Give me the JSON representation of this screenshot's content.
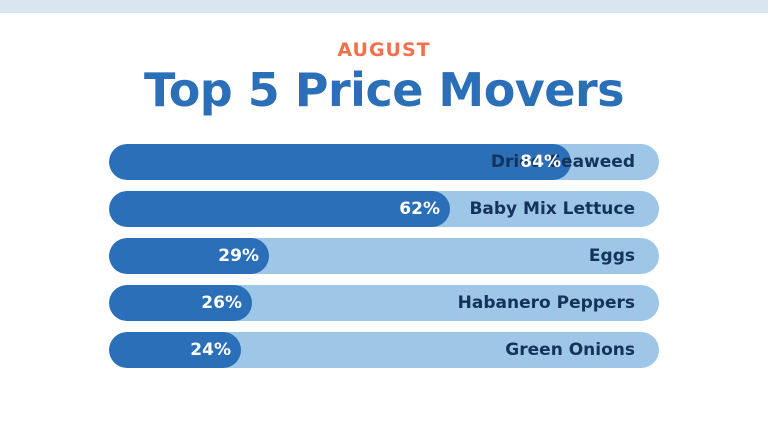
{
  "colors": {
    "accent": "#f0714b",
    "bar_fill": "#2a6fb8",
    "bar_track": "#9dc6e7",
    "label_dark": "#15325a",
    "band": "#d9e6f1"
  },
  "chart_data": {
    "type": "bar",
    "orientation": "horizontal",
    "kicker": "AUGUST",
    "title": "Top 5 Price Movers",
    "xlim": [
      0,
      100
    ],
    "categories": [
      "Dried Seaweed",
      "Baby Mix Lettuce",
      "Eggs",
      "Habanero Peppers",
      "Green Onions"
    ],
    "values": [
      84,
      62,
      29,
      26,
      24
    ],
    "value_labels": [
      "84%",
      "62%",
      "29%",
      "26%",
      "24%"
    ],
    "grid": false,
    "legend": "none"
  }
}
